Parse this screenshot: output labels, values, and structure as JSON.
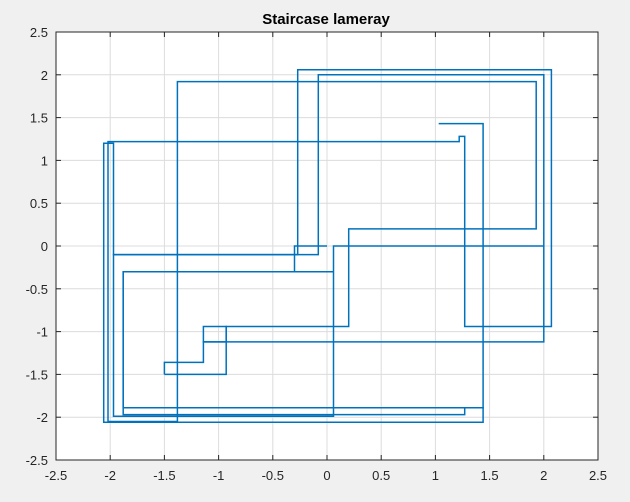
{
  "chart_data": {
    "type": "line",
    "title": "Staircase lameray",
    "xlabel": "",
    "ylabel": "",
    "xlim": [
      -2.5,
      2.5
    ],
    "ylim": [
      -2.5,
      2.5
    ],
    "xticks": [
      -2.5,
      -2,
      -1.5,
      -1,
      -0.5,
      0,
      0.5,
      1,
      1.5,
      2,
      2.5
    ],
    "yticks": [
      -2.5,
      -2,
      -1.5,
      -1,
      -0.5,
      0,
      0.5,
      1,
      1.5,
      2,
      2.5
    ],
    "xtick_labels": [
      "-2.5",
      "-2",
      "-1.5",
      "-1",
      "-0.5",
      "0",
      "0.5",
      "1",
      "1.5",
      "2",
      "2.5"
    ],
    "ytick_labels": [
      "-2.5",
      "-2",
      "-1.5",
      "-1",
      "-0.5",
      "0",
      "0.5",
      "1",
      "1.5",
      "2",
      "2.5"
    ],
    "grid": true,
    "legend": "none",
    "series": [
      {
        "color": "#0072bd",
        "step": "post",
        "x": [
          2.0,
          0.06,
          -1.97,
          -0.27,
          2.07,
          1.27,
          1.22,
          -2.02,
          -1.38,
          1.93,
          0.2,
          -0.93,
          -1.14,
          -1.38
        ],
        "y": [
          0.0,
          -1.99,
          -0.1,
          2.06,
          -0.94,
          1.28,
          1.22,
          -2.05,
          1.92,
          0.2,
          -0.94,
          -1.12,
          -1.36,
          -1.36
        ],
        "end_x": -1.5,
        "end_y": -1.5
      },
      {
        "color": "#0072bd",
        "step": "post",
        "x": [
          -1.5,
          -0.93,
          -1.14,
          2.0,
          -0.08,
          -1.97,
          -2.06,
          1.44,
          -1.88,
          -0.3,
          -0.08
        ],
        "y": [
          -1.5,
          -0.94,
          -1.12,
          2.0,
          -0.1,
          1.2,
          -2.06,
          -1.89,
          -0.3,
          0.0,
          0.0
        ],
        "end_x": 0.0,
        "end_y": 0.0
      },
      {
        "color": "#0072bd",
        "step": "post",
        "x": [
          1.03,
          1.44,
          1.27,
          -1.88,
          0.06
        ],
        "y": [
          1.43,
          -1.89,
          -1.97,
          -0.3,
          -0.3
        ],
        "end_x": 0.06,
        "end_y": -0.3
      }
    ]
  }
}
